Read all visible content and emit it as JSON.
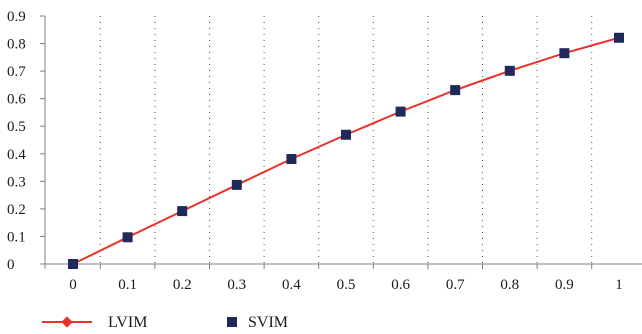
{
  "chart_data": {
    "type": "line",
    "x": [
      0,
      0.1,
      0.2,
      0.3,
      0.4,
      0.5,
      0.6,
      0.7,
      0.8,
      0.9,
      1
    ],
    "x_tick_labels": [
      "0",
      "0.1",
      "0.2",
      "0.3",
      "0.4",
      "0.5",
      "0.6",
      "0.7",
      "0.8",
      "0.9",
      "1"
    ],
    "y_tick_labels": [
      "0",
      "0.1",
      "0.2",
      "0.3",
      "0.4",
      "0.5",
      "0.6",
      "0.7",
      "0.8",
      "0.9"
    ],
    "ylim": [
      0,
      0.9
    ],
    "xlim": [
      0,
      1
    ],
    "grid": "vertical dotted",
    "legend_position": "bottom-left",
    "series": [
      {
        "name": "LVIM",
        "style": "line with diamond markers",
        "color": "#e8322b",
        "values": [
          0,
          0.097,
          0.192,
          0.287,
          0.381,
          0.469,
          0.553,
          0.631,
          0.701,
          0.765,
          0.821
        ]
      },
      {
        "name": "SVIM",
        "style": "square markers",
        "color": "#1f2a5a",
        "values": [
          0,
          0.097,
          0.192,
          0.287,
          0.381,
          0.469,
          0.553,
          0.631,
          0.701,
          0.765,
          0.821
        ]
      }
    ]
  }
}
